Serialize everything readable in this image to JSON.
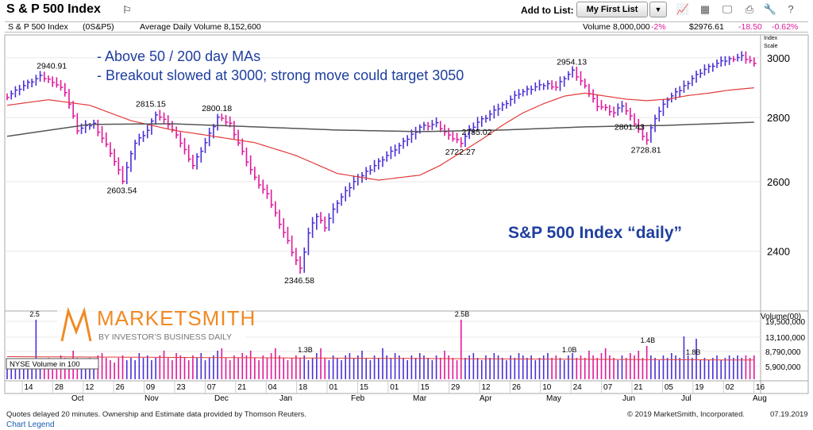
{
  "header": {
    "title": "S & P 500 Index",
    "add_to_list_label": "Add to List:",
    "list_selected": "My First List"
  },
  "infobar": {
    "name": "S & P 500 Index",
    "symbol": "(0S&P5)",
    "avg_volume_label": "Average Daily Volume 8,152,600",
    "volume": "Volume 8,000,000",
    "volume_change": "-2%",
    "price": "$2976.61",
    "price_change": "-18.50",
    "pct_change": "-0.62%",
    "scale_label_1": "Index",
    "scale_label_2": "Scale"
  },
  "colors": {
    "up": "#4a2fd6",
    "down": "#e0189a",
    "ma50": "#e23b3b",
    "ma200": "#555555",
    "annotation": "#1f3f9e",
    "grid": "#e8e8e8"
  },
  "footer": {
    "disclaimer": "Quotes delayed 20 minutes. Ownership and Estimate data provided by Thomson Reuters.",
    "copyright": "© 2019 MarketSmith, Incorporated.",
    "date": "07.19.2019",
    "legend_link": "Chart Legend"
  },
  "chart_data": {
    "type": "bar",
    "subtype": "ohlc-daily-price-and-volume",
    "chart_title": "S&P 500 Index “daily”",
    "annotations": [
      "- Above 50 / 200 day MAs",
      "- Breakout slowed at 3000; strong move could target 3050"
    ],
    "price_axis": {
      "ticks": [
        2400,
        2600,
        2800,
        3000
      ],
      "ylim": [
        2240,
        3080
      ],
      "scale": "log"
    },
    "volume_axis": {
      "title": "Volume(00)",
      "ticks": [
        "19,500,000",
        "13,100,000",
        "8,790,000",
        "5,900,000"
      ]
    },
    "volume_badge": "NYSE Volume in 100",
    "x_day_ticks": [
      "14",
      "28",
      "12",
      "26",
      "09",
      "23",
      "07",
      "21",
      "04",
      "18",
      "01",
      "15",
      "01",
      "15",
      "29",
      "12",
      "26",
      "10",
      "24",
      "07",
      "21",
      "05",
      "19",
      "02",
      "16"
    ],
    "x_month_labels": [
      "Oct",
      "Nov",
      "Dec",
      "Jan",
      "Feb",
      "Mar",
      "Apr",
      "May",
      "Jun",
      "Jul",
      "Aug"
    ],
    "price_labels": [
      {
        "text": "2940.91",
        "value": 2940.91
      },
      {
        "text": "2815.15",
        "value": 2815.15
      },
      {
        "text": "2800.18",
        "value": 2800.18
      },
      {
        "text": "2603.54",
        "value": 2603.54
      },
      {
        "text": "2346.58",
        "value": 2346.58
      },
      {
        "text": "2722.27",
        "value": 2722.27
      },
      {
        "text": "2785.02",
        "value": 2785.02
      },
      {
        "text": "2954.13",
        "value": 2954.13
      },
      {
        "text": "2801.43",
        "value": 2801.43
      },
      {
        "text": "2728.81",
        "value": 2728.81
      }
    ],
    "volume_labels": [
      "2.5",
      "1.3B",
      "2.5B",
      "1.0B",
      "1.4B",
      "1.8B"
    ],
    "price_path": [
      [
        0,
        2870
      ],
      [
        4,
        2905
      ],
      [
        8,
        2935
      ],
      [
        11,
        2920
      ],
      [
        14,
        2885
      ],
      [
        17,
        2760
      ],
      [
        21,
        2780
      ],
      [
        25,
        2690
      ],
      [
        28,
        2604
      ],
      [
        31,
        2720
      ],
      [
        34,
        2760
      ],
      [
        36,
        2812
      ],
      [
        39,
        2780
      ],
      [
        42,
        2720
      ],
      [
        45,
        2650
      ],
      [
        48,
        2720
      ],
      [
        51,
        2800
      ],
      [
        54,
        2780
      ],
      [
        57,
        2690
      ],
      [
        60,
        2610
      ],
      [
        63,
        2560
      ],
      [
        66,
        2480
      ],
      [
        69,
        2400
      ],
      [
        71,
        2350
      ],
      [
        73,
        2450
      ],
      [
        75,
        2500
      ],
      [
        77,
        2470
      ],
      [
        80,
        2540
      ],
      [
        84,
        2600
      ],
      [
        88,
        2640
      ],
      [
        92,
        2680
      ],
      [
        96,
        2720
      ],
      [
        100,
        2770
      ],
      [
        104,
        2780
      ],
      [
        107,
        2740
      ],
      [
        110,
        2722
      ],
      [
        112,
        2760
      ],
      [
        114,
        2785
      ],
      [
        116,
        2800
      ],
      [
        120,
        2840
      ],
      [
        124,
        2880
      ],
      [
        128,
        2900
      ],
      [
        131,
        2910
      ],
      [
        133,
        2900
      ],
      [
        135,
        2932
      ],
      [
        137,
        2954
      ],
      [
        139,
        2920
      ],
      [
        141,
        2880
      ],
      [
        143,
        2840
      ],
      [
        145,
        2830
      ],
      [
        147,
        2815
      ],
      [
        149,
        2840
      ],
      [
        151,
        2801
      ],
      [
        153,
        2760
      ],
      [
        155,
        2729
      ],
      [
        157,
        2800
      ],
      [
        160,
        2860
      ],
      [
        163,
        2890
      ],
      [
        166,
        2930
      ],
      [
        169,
        2960
      ],
      [
        172,
        2980
      ],
      [
        175,
        2995
      ],
      [
        178,
        3005
      ],
      [
        180,
        2990
      ],
      [
        181,
        2977
      ]
    ],
    "ma50_path": [
      [
        0,
        2840
      ],
      [
        10,
        2858
      ],
      [
        20,
        2840
      ],
      [
        30,
        2790
      ],
      [
        40,
        2760
      ],
      [
        50,
        2740
      ],
      [
        60,
        2720
      ],
      [
        70,
        2680
      ],
      [
        80,
        2625
      ],
      [
        90,
        2605
      ],
      [
        100,
        2620
      ],
      [
        105,
        2650
      ],
      [
        110,
        2690
      ],
      [
        115,
        2730
      ],
      [
        120,
        2775
      ],
      [
        125,
        2815
      ],
      [
        130,
        2845
      ],
      [
        135,
        2870
      ],
      [
        140,
        2880
      ],
      [
        145,
        2870
      ],
      [
        150,
        2860
      ],
      [
        155,
        2855
      ],
      [
        160,
        2860
      ],
      [
        165,
        2872
      ],
      [
        170,
        2880
      ],
      [
        175,
        2890
      ],
      [
        181,
        2898
      ]
    ],
    "ma200_path": [
      [
        0,
        2740
      ],
      [
        20,
        2778
      ],
      [
        40,
        2780
      ],
      [
        60,
        2770
      ],
      [
        80,
        2760
      ],
      [
        100,
        2755
      ],
      [
        120,
        2760
      ],
      [
        140,
        2770
      ],
      [
        160,
        2775
      ],
      [
        181,
        2785
      ]
    ],
    "volume_values": [
      5,
      6,
      5,
      7,
      6,
      5,
      6,
      25,
      8,
      7,
      9,
      8,
      7,
      10,
      9,
      8,
      12,
      9,
      8,
      7,
      9,
      8,
      10,
      11,
      9,
      8,
      7,
      9,
      10,
      8,
      9,
      8,
      11,
      9,
      10,
      8,
      9,
      10,
      12,
      9,
      8,
      11,
      10,
      9,
      8,
      10,
      9,
      11,
      8,
      9,
      10,
      12,
      13,
      9,
      8,
      10,
      9,
      11,
      10,
      12,
      9,
      8,
      10,
      9,
      11,
      13,
      10,
      9,
      8,
      9,
      10,
      9,
      10,
      8,
      9,
      11,
      13,
      9,
      8,
      10,
      9,
      8,
      10,
      11,
      9,
      10,
      12,
      9,
      8,
      10,
      9,
      13,
      10,
      9,
      11,
      10,
      9,
      8,
      10,
      9,
      11,
      10,
      9,
      8,
      10,
      9,
      12,
      10,
      9,
      8,
      25,
      9,
      10,
      11,
      9,
      8,
      10,
      9,
      11,
      10,
      9,
      8,
      10,
      9,
      11,
      10,
      9,
      10,
      8,
      9,
      10,
      11,
      9,
      10,
      9,
      8,
      10,
      11,
      9,
      10,
      9,
      12,
      10,
      9,
      11,
      13,
      10,
      9,
      8,
      10,
      9,
      11,
      10,
      12,
      9,
      14,
      10,
      9,
      8,
      10,
      9,
      11,
      10,
      9,
      18,
      10,
      9,
      17,
      8,
      9,
      8,
      9,
      10,
      8,
      9,
      10,
      9,
      10,
      9,
      10,
      9,
      10
    ]
  }
}
